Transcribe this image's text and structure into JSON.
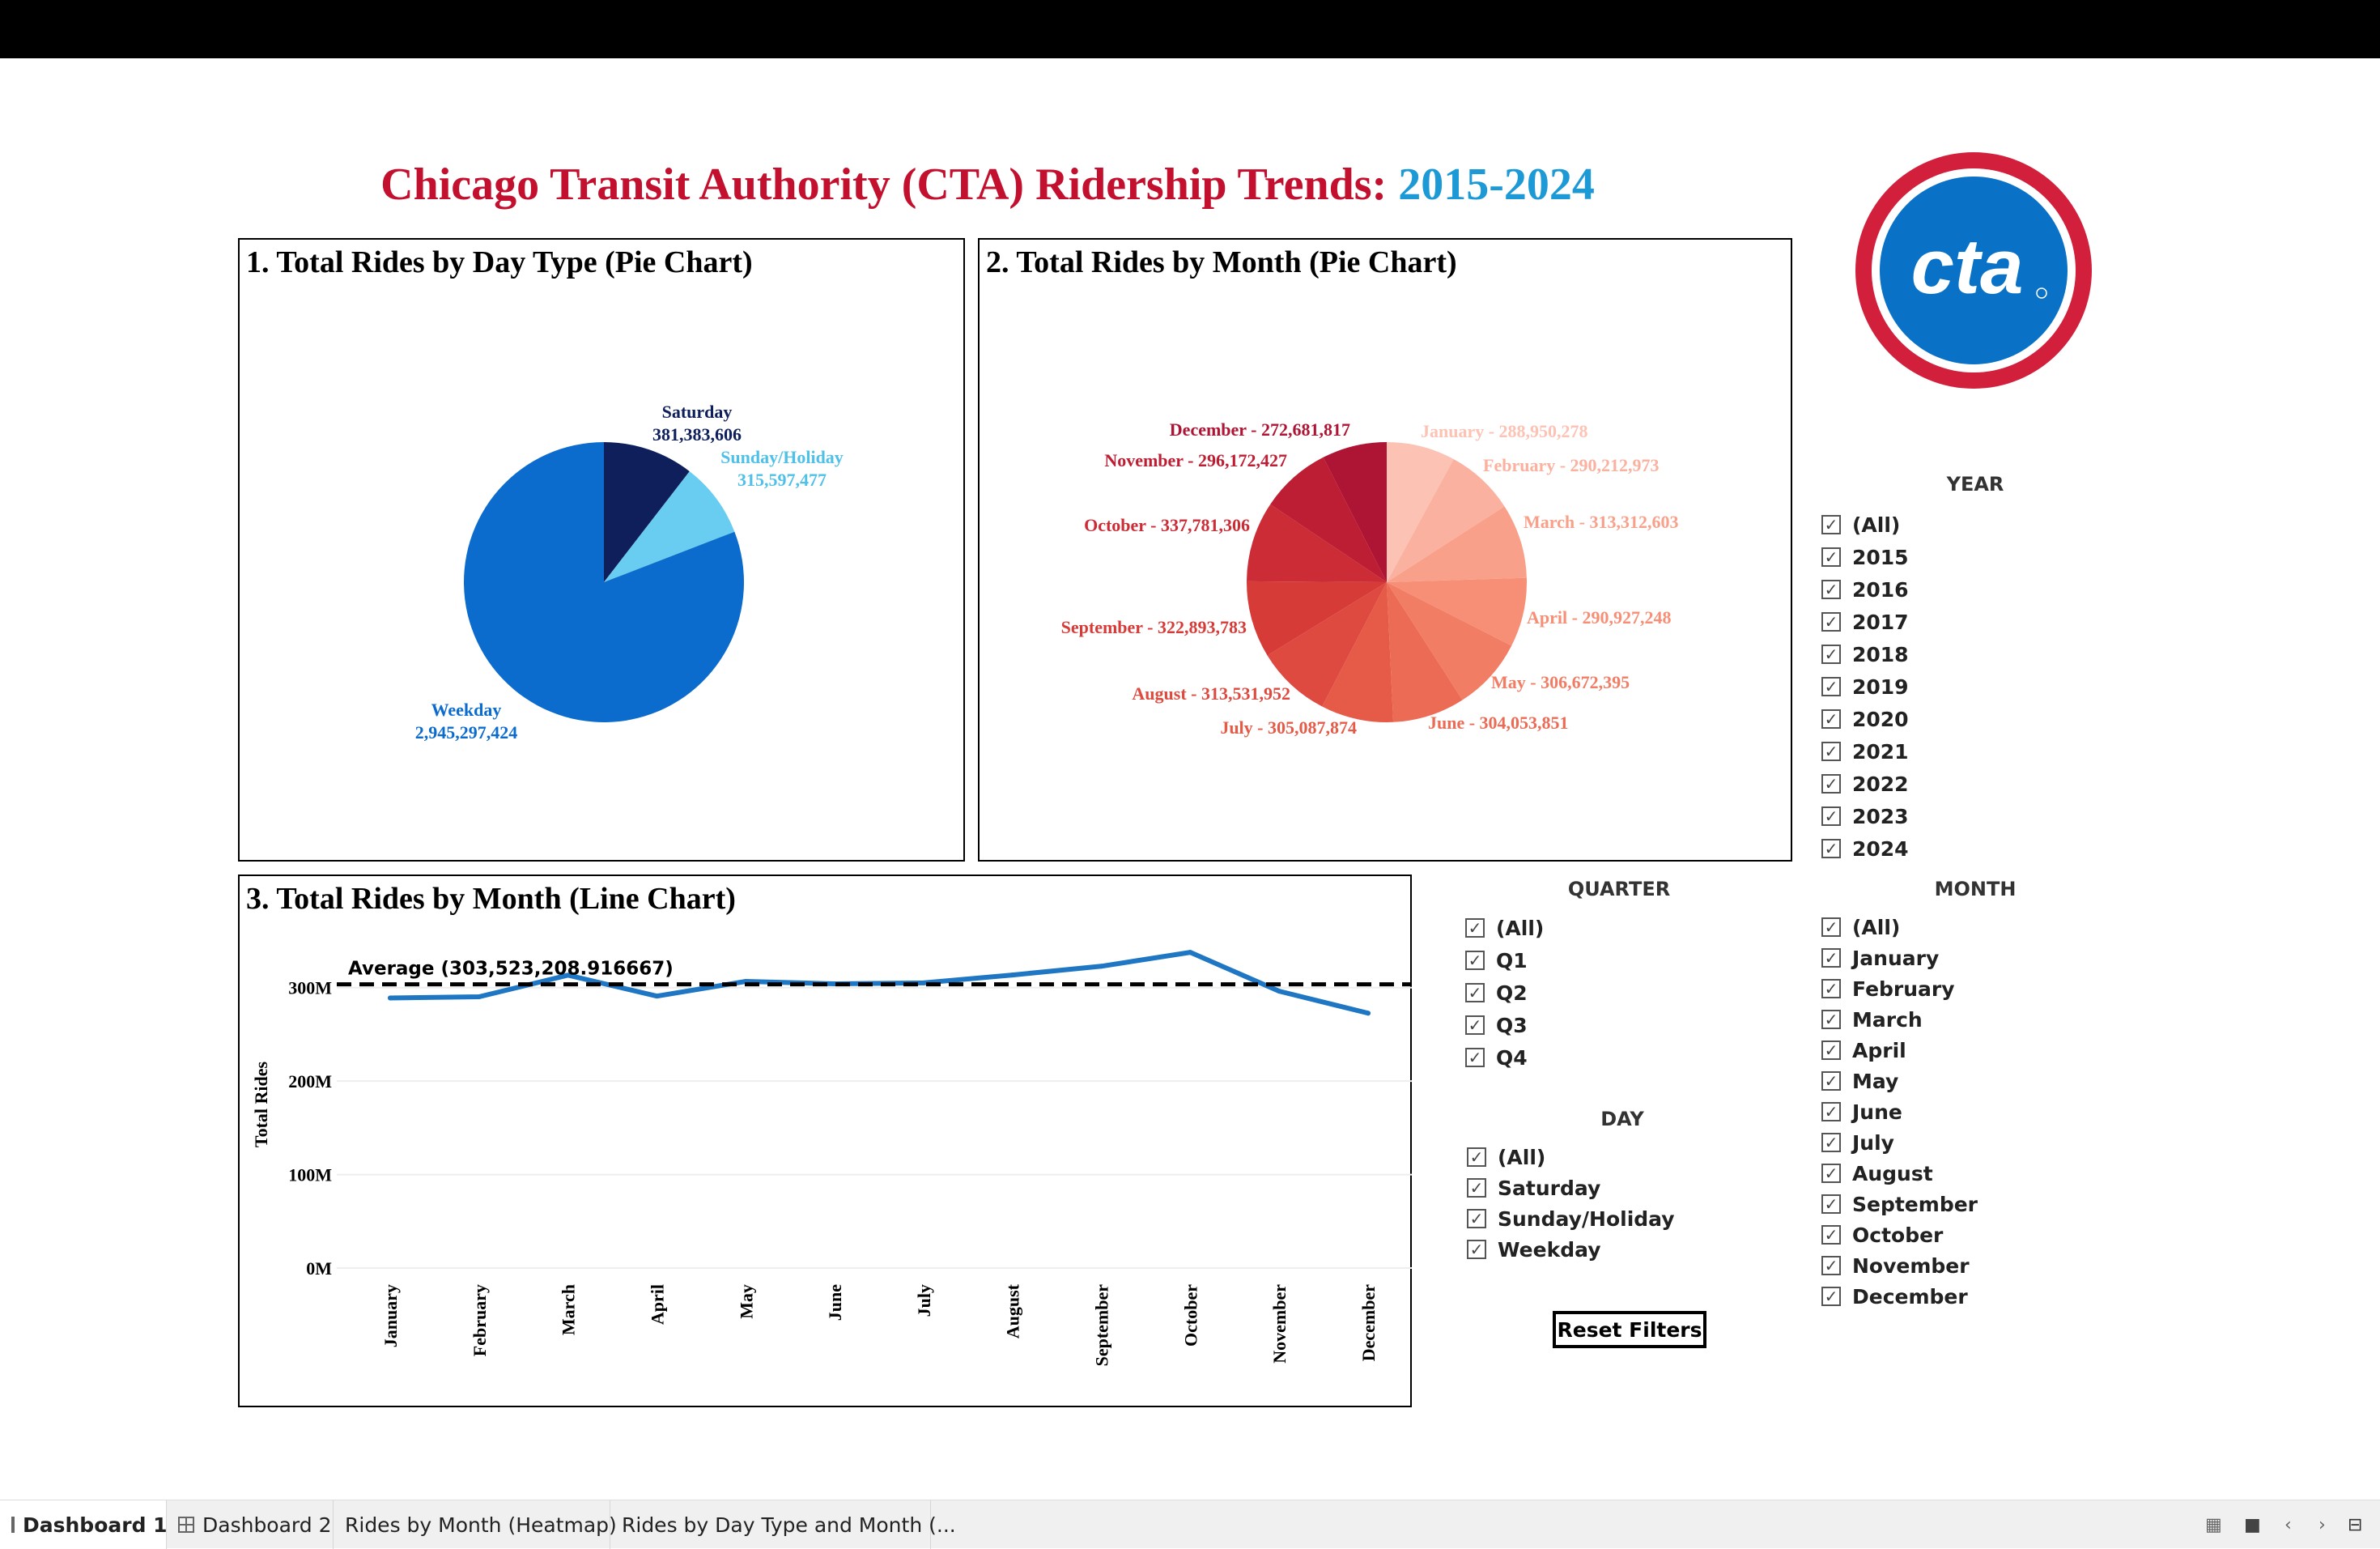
{
  "title": {
    "part1": "Chicago Transit Authority (CTA) Ridership Trends: ",
    "part2": "2015-2024"
  },
  "logo": {
    "text": "cta",
    "colors": {
      "ring": "#d21f3c",
      "fill": "#0a72c6"
    }
  },
  "panels": {
    "pie_day_title": "1. Total Rides by Day Type (Pie Chart)",
    "pie_month_title": "2. Total Rides by Month (Pie Chart)",
    "line_title": "3. Total Rides by Month (Line Chart)"
  },
  "chart_data": [
    {
      "type": "pie",
      "title": "1. Total Rides by Day Type (Pie Chart)",
      "slices": [
        {
          "label": "Saturday",
          "value": 381383606,
          "value_text": "381,383,606",
          "color": "#0e1f5b"
        },
        {
          "label": "Sunday/Holiday",
          "value": 315597477,
          "value_text": "315,597,477",
          "color": "#68cdf0"
        },
        {
          "label": "Weekday",
          "value": 2945297424,
          "value_text": "2,945,297,424",
          "color": "#0c6ccd"
        }
      ]
    },
    {
      "type": "pie",
      "title": "2. Total Rides by Month (Pie Chart)",
      "slices": [
        {
          "label": "January",
          "value": 288950278,
          "text": "January - 288,950,278",
          "color": "#fcc2b4"
        },
        {
          "label": "February",
          "value": 290212973,
          "text": "February - 290,212,973",
          "color": "#fbb19f"
        },
        {
          "label": "March",
          "value": 313312603,
          "text": "March - 313,312,603",
          "color": "#f9a08a"
        },
        {
          "label": "April",
          "value": 290927248,
          "text": "April - 290,927,248",
          "color": "#f78f76"
        },
        {
          "label": "May",
          "value": 306672395,
          "text": "May - 306,672,395",
          "color": "#f27d65"
        },
        {
          "label": "June",
          "value": 304053851,
          "text": "June - 304,053,851",
          "color": "#ec6b55"
        },
        {
          "label": "July",
          "value": 305087874,
          "text": "July - 305,087,874",
          "color": "#e65a48"
        },
        {
          "label": "August",
          "value": 313531952,
          "text": "August - 313,531,952",
          "color": "#de4a3f"
        },
        {
          "label": "September",
          "value": 322893783,
          "text": "September - 322,893,783",
          "color": "#d63b38"
        },
        {
          "label": "October",
          "value": 337781306,
          "text": "October - 337,781,306",
          "color": "#cb2c35"
        },
        {
          "label": "November",
          "value": 296172427,
          "text": "November - 296,172,427",
          "color": "#be1e33"
        },
        {
          "label": "December",
          "value": 272681817,
          "text": "December - 272,681,817",
          "color": "#ae1433"
        }
      ]
    },
    {
      "type": "line",
      "title": "3. Total Rides by Month (Line Chart)",
      "ylabel": "Total Rides",
      "categories": [
        "January",
        "February",
        "March",
        "April",
        "May",
        "June",
        "July",
        "August",
        "September",
        "October",
        "November",
        "December"
      ],
      "values": [
        288950278,
        290212973,
        313312603,
        290927248,
        306672395,
        304053851,
        305087874,
        313531952,
        322893783,
        337781306,
        296172427,
        272681817
      ],
      "yticks": [
        0,
        100000000,
        200000000,
        300000000
      ],
      "ytick_labels": [
        "0M",
        "100M",
        "200M",
        "300M"
      ],
      "ylim": [
        0,
        350000000
      ],
      "average": 303523208.916667,
      "average_label": "Average (303,523,208.916667)",
      "line_color": "#1f77c4",
      "grid": true
    }
  ],
  "filters": {
    "year": {
      "heading": "YEAR",
      "items": [
        "(All)",
        "2015",
        "2016",
        "2017",
        "2018",
        "2019",
        "2020",
        "2021",
        "2022",
        "2023",
        "2024"
      ]
    },
    "quarter": {
      "heading": "QUARTER",
      "items": [
        "(All)",
        "Q1",
        "Q2",
        "Q3",
        "Q4"
      ]
    },
    "day": {
      "heading": "DAY",
      "items": [
        "(All)",
        "Saturday",
        "Sunday/Holiday",
        "Weekday"
      ]
    },
    "month": {
      "heading": "MONTH",
      "items": [
        "(All)",
        "January",
        "February",
        "March",
        "April",
        "May",
        "June",
        "July",
        "August",
        "September",
        "October",
        "November",
        "December"
      ]
    },
    "checkmark": "✓",
    "reset_label": "Reset Filters"
  },
  "tabs": [
    {
      "label": "Dashboard 1",
      "active": true,
      "icon": "grid-icon"
    },
    {
      "label": "Dashboard 2",
      "active": false,
      "icon": "grid-icon"
    },
    {
      "label": "Rides by Month (Heatmap)",
      "active": false
    },
    {
      "label": "Rides by Day Type and Month (...",
      "active": false
    }
  ]
}
